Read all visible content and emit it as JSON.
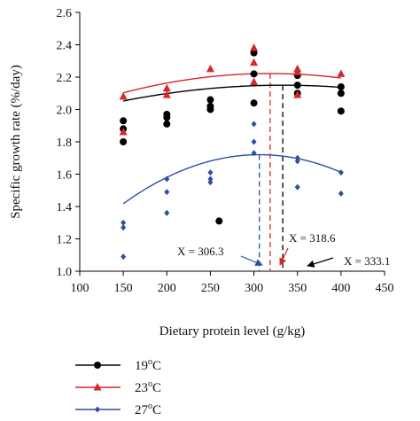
{
  "chart_data": {
    "type": "scatter",
    "xlabel": "Dietary protein level (g/kg)",
    "ylabel": "Specific growth rate (%/day)",
    "xlim": [
      100,
      450
    ],
    "ylim": [
      1.0,
      2.6
    ],
    "xticks": [
      "100",
      "150",
      "200",
      "250",
      "300",
      "350",
      "400",
      "450"
    ],
    "yticks": [
      "1.0",
      "1.2",
      "1.4",
      "1.6",
      "1.8",
      "2.0",
      "2.2",
      "2.4",
      "2.6"
    ],
    "grid": false,
    "legend_position": "bottom-left",
    "series": [
      {
        "name": "19",
        "name_sup": "o",
        "name_suffix": "C",
        "color": "#000000",
        "marker": "circle",
        "points": [
          [
            150,
            1.93
          ],
          [
            150,
            1.88
          ],
          [
            150,
            1.8
          ],
          [
            200,
            1.97
          ],
          [
            200,
            1.95
          ],
          [
            200,
            1.91
          ],
          [
            250,
            2.06
          ],
          [
            250,
            2.02
          ],
          [
            250,
            2.0
          ],
          [
            260,
            1.31
          ],
          [
            300,
            2.35
          ],
          [
            300,
            2.22
          ],
          [
            300,
            2.04
          ],
          [
            350,
            2.21
          ],
          [
            350,
            2.15
          ],
          [
            350,
            2.1
          ],
          [
            400,
            2.14
          ],
          [
            400,
            2.1
          ],
          [
            400,
            1.99
          ]
        ],
        "fit": {
          "a": -2.9e-06,
          "b": 0.0019321,
          "c": 1.828,
          "x_from": 150,
          "x_to": 400
        },
        "optimum_x": 333.1,
        "optimum_label": "X = 333.1"
      },
      {
        "name": "23",
        "name_sup": "o",
        "name_suffix": "C",
        "color": "#d62728",
        "marker": "triangle",
        "points": [
          [
            150,
            2.08
          ],
          [
            150,
            1.86
          ],
          [
            200,
            2.13
          ],
          [
            200,
            2.09
          ],
          [
            250,
            2.25
          ],
          [
            300,
            2.38
          ],
          [
            300,
            2.29
          ],
          [
            300,
            2.17
          ],
          [
            350,
            2.25
          ],
          [
            350,
            2.23
          ],
          [
            350,
            2.09
          ],
          [
            400,
            2.22
          ]
        ],
        "fit": {
          "a": -4.2e-06,
          "b": 0.00267624,
          "c": 1.7958,
          "x_from": 150,
          "x_to": 400
        },
        "optimum_x": 318.6,
        "optimum_label": "X = 318.6"
      },
      {
        "name": "27",
        "name_sup": "o",
        "name_suffix": "C",
        "color": "#2b4ea2",
        "marker": "diamond",
        "points": [
          [
            150,
            1.3
          ],
          [
            150,
            1.27
          ],
          [
            150,
            1.09
          ],
          [
            200,
            1.57
          ],
          [
            200,
            1.49
          ],
          [
            200,
            1.36
          ],
          [
            250,
            1.61
          ],
          [
            250,
            1.57
          ],
          [
            250,
            1.55
          ],
          [
            300,
            1.91
          ],
          [
            300,
            1.8
          ],
          [
            300,
            1.73
          ],
          [
            350,
            1.7
          ],
          [
            350,
            1.68
          ],
          [
            350,
            1.52
          ],
          [
            400,
            1.61
          ],
          [
            400,
            1.48
          ]
        ],
        "fit": {
          "a": -1.24e-05,
          "b": 0.00759624,
          "c": 0.557,
          "x_from": 150,
          "x_to": 400
        },
        "optimum_x": 306.3,
        "optimum_label": "X = 306.3"
      }
    ]
  }
}
